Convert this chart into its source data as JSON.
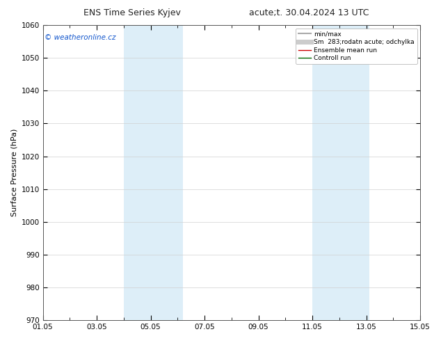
{
  "title_left": "ENS Time Series Kyjev",
  "title_right": "acute;t. 30.04.2024 13 UTC",
  "ylabel": "Surface Pressure (hPa)",
  "ylim": [
    970,
    1060
  ],
  "yticks": [
    970,
    980,
    990,
    1000,
    1010,
    1020,
    1030,
    1040,
    1050,
    1060
  ],
  "xlim_start": 0,
  "xlim_end": 14,
  "xtick_labels": [
    "01.05",
    "03.05",
    "05.05",
    "07.05",
    "09.05",
    "11.05",
    "13.05",
    "15.05"
  ],
  "xtick_positions": [
    0,
    2,
    4,
    6,
    8,
    10,
    12,
    14
  ],
  "shaded_bands": [
    {
      "x_start": 3.0,
      "x_end": 5.2,
      "color": "#ddeef8"
    },
    {
      "x_start": 10.0,
      "x_end": 12.1,
      "color": "#ddeef8"
    }
  ],
  "bg_color": "#ffffff",
  "plot_bg_color": "#ffffff",
  "grid_color": "#d0d0d0",
  "legend_items": [
    {
      "label": "min/max",
      "color": "#aaaaaa",
      "lw": 1.5
    },
    {
      "label": "Sm  283;rodatn acute; odchylka",
      "color": "#cccccc",
      "lw": 5
    },
    {
      "label": "Ensemble mean run",
      "color": "#cc0000",
      "lw": 1.0
    },
    {
      "label": "Controll run",
      "color": "#006600",
      "lw": 1.0
    }
  ],
  "watermark": "© weatheronline.cz",
  "watermark_color": "#1155cc",
  "watermark_fontsize": 7.5,
  "title_fontsize": 9,
  "ylabel_fontsize": 8,
  "tick_fontsize": 7.5
}
